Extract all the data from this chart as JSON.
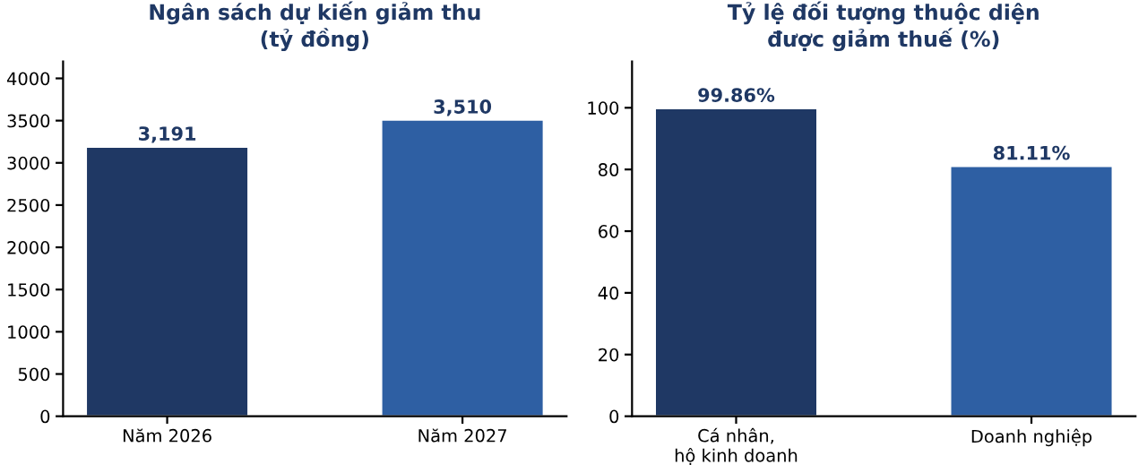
{
  "chart_data": [
    {
      "type": "bar",
      "title": "Ngân sách dự kiến giảm thu\n(tỷ đồng)",
      "categories": [
        "Năm 2026",
        "Năm 2027"
      ],
      "values": [
        3191,
        3510
      ],
      "colors": [
        "#1f3864",
        "#2e5fa3"
      ],
      "value_labels": [
        "3,191",
        "3,510"
      ],
      "ylim": [
        0,
        4200
      ],
      "yticks": [
        0,
        500,
        1000,
        1500,
        2000,
        2500,
        3000,
        3500,
        4000
      ],
      "grid": false
    },
    {
      "type": "bar",
      "title": "Tỷ lệ đối tượng thuộc diện\nđược giảm thuế (%)",
      "categories": [
        "Cá nhân,\nhộ kinh doanh",
        "Doanh nghiệp"
      ],
      "values": [
        99.86,
        81.11
      ],
      "colors": [
        "#1f3864",
        "#2e5fa3"
      ],
      "value_labels": [
        "99.86%",
        "81.11%"
      ],
      "ylim": [
        0,
        115
      ],
      "yticks": [
        0,
        20,
        40,
        60,
        80,
        100
      ],
      "grid": false
    }
  ]
}
